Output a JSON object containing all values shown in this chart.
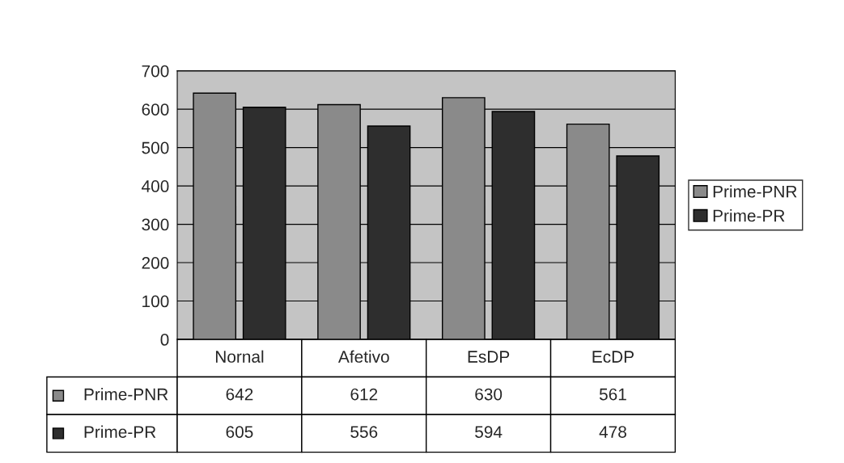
{
  "chart_data": {
    "type": "bar",
    "categories": [
      "Nornal",
      "Afetivo",
      "EsDP",
      "EcDP"
    ],
    "series": [
      {
        "name": "Prime-PNR",
        "color": "#8a8a8a",
        "values": [
          642,
          612,
          630,
          561
        ]
      },
      {
        "name": "Prime-PR",
        "color": "#2e2e2e",
        "values": [
          605,
          556,
          594,
          478
        ]
      }
    ],
    "ylim": [
      0,
      700
    ],
    "yticks": [
      0,
      100,
      200,
      300,
      400,
      500,
      600,
      700
    ],
    "grid": "y",
    "legend": "right",
    "data_labels": true
  }
}
